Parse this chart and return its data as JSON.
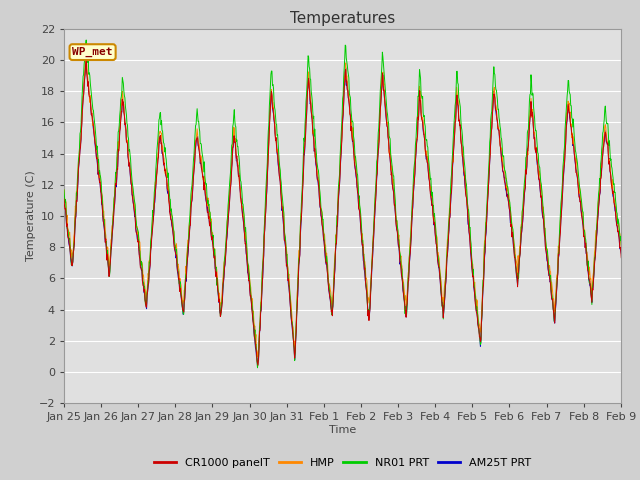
{
  "title": "Temperatures",
  "xlabel": "Time",
  "ylabel": "Temperature (C)",
  "ylim": [
    -2,
    22
  ],
  "yticks": [
    -2,
    0,
    2,
    4,
    6,
    8,
    10,
    12,
    14,
    16,
    18,
    20,
    22
  ],
  "fig_bg_color": "#d0d0d0",
  "plot_bg_color": "#e0e0e0",
  "grid_color": "#ffffff",
  "title_fontsize": 11,
  "label_fontsize": 8,
  "tick_fontsize": 8,
  "legend_labels": [
    "CR1000 panelT",
    "HMP",
    "NR01 PRT",
    "AM25T PRT"
  ],
  "legend_colors": [
    "#cc0000",
    "#ff8800",
    "#00cc00",
    "#0000cc"
  ],
  "annotation_text": "WP_met",
  "annotation_bg": "#ffffcc",
  "annotation_border": "#cc8800",
  "annotation_text_color": "#880000",
  "x_tick_labels": [
    "Jan 25",
    "Jan 26",
    "Jan 27",
    "Jan 28",
    "Jan 29",
    "Jan 30",
    "Jan 31",
    "Feb 1",
    "Feb 2",
    "Feb 3",
    "Feb 4",
    "Feb 5",
    "Feb 6",
    "Feb 7",
    "Feb 8",
    "Feb 9"
  ],
  "n_points": 1152
}
